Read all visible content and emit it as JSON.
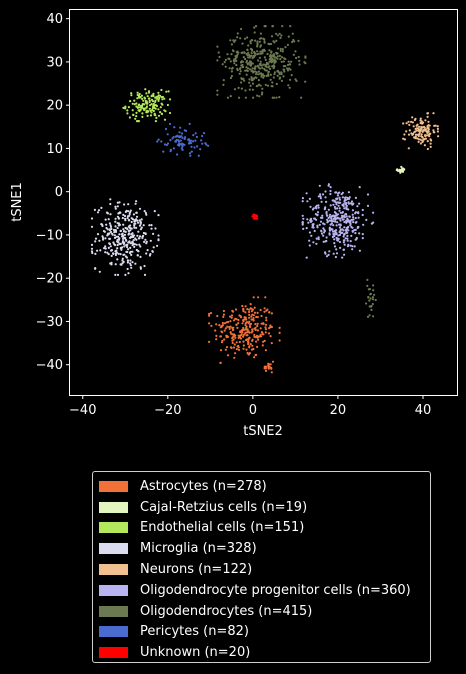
{
  "chart_data": {
    "type": "scatter",
    "title": "",
    "xlabel": "tSNE2",
    "ylabel": "tSNE1",
    "xlim": [
      -43,
      48
    ],
    "ylim": [
      -47,
      42
    ],
    "xticks": [
      -40,
      -20,
      0,
      20,
      40
    ],
    "yticks": [
      -40,
      -30,
      -20,
      -10,
      0,
      10,
      20,
      30,
      40
    ],
    "grid": false,
    "legend_position": "below plot",
    "series": [
      {
        "name": "Astrocytes (n=278)",
        "color": "#f07238",
        "clusters": [
          {
            "cx": -2,
            "cy": -32,
            "sx": 3.6,
            "sy": 3.3,
            "n": 260
          },
          {
            "cx": 3.8,
            "cy": -40.5,
            "sx": 0.6,
            "sy": 1.2,
            "n": 18
          }
        ]
      },
      {
        "name": "Cajal-Retzius cells (n=19)",
        "color": "#e5f5c0",
        "clusters": [
          {
            "cx": 35,
            "cy": 5,
            "sx": 0.5,
            "sy": 0.4,
            "n": 19
          }
        ]
      },
      {
        "name": "Endothelial cells (n=151)",
        "color": "#b3e85c",
        "clusters": [
          {
            "cx": -25,
            "cy": 20,
            "sx": 2.4,
            "sy": 1.6,
            "n": 151
          }
        ]
      },
      {
        "name": "Microglia (n=328)",
        "color": "#dcdcf0",
        "clusters": [
          {
            "cx": -30,
            "cy": -10.5,
            "sx": 3.4,
            "sy": 3.8,
            "n": 328
          }
        ]
      },
      {
        "name": "Neurons (n=122)",
        "color": "#f0c090",
        "clusters": [
          {
            "cx": 39.5,
            "cy": 14,
            "sx": 1.8,
            "sy": 1.8,
            "n": 122
          }
        ]
      },
      {
        "name": "Oligodendrocyte progenitor cells (n=360)",
        "color": "#b8b4f0",
        "clusters": [
          {
            "cx": 20,
            "cy": -6.5,
            "sx": 3.6,
            "sy": 3.8,
            "n": 360
          }
        ]
      },
      {
        "name": "Oligodendrocytes (n=415)",
        "color": "#6b7a50",
        "clusters": [
          {
            "cx": 2,
            "cy": 30,
            "sx": 4.5,
            "sy": 3.6,
            "n": 390
          },
          {
            "cx": 27.5,
            "cy": -25,
            "sx": 0.6,
            "sy": 2.0,
            "n": 25
          }
        ]
      },
      {
        "name": "Pericytes (n=82)",
        "color": "#4a6cd0",
        "clusters": [
          {
            "cx": -16.5,
            "cy": 12,
            "sx": 2.6,
            "sy": 1.6,
            "n": 82
          }
        ]
      },
      {
        "name": "Unknown (n=20)",
        "color": "#ff0000",
        "clusters": [
          {
            "cx": 0.5,
            "cy": -5.8,
            "sx": 0.3,
            "sy": 0.3,
            "n": 20
          }
        ]
      }
    ]
  }
}
